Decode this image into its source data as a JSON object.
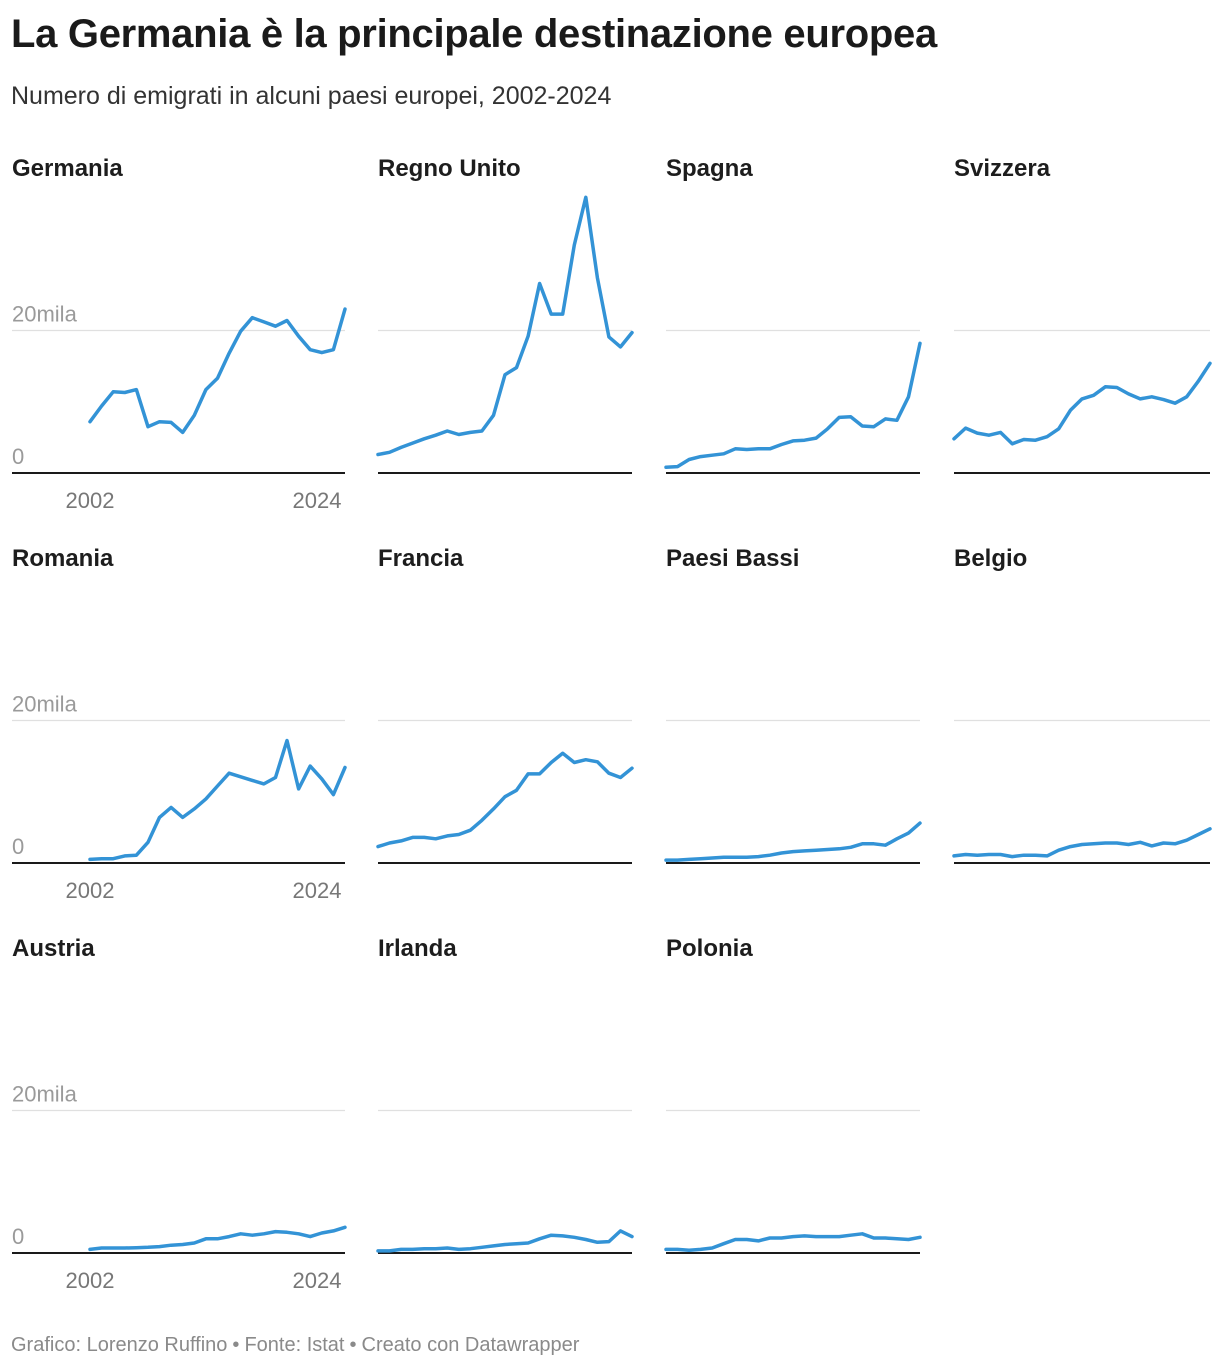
{
  "header": {
    "title": "La Germania è la principale destinazione europea",
    "subtitle": "Numero di emigrati in alcuni paesi europei, 2002-2024"
  },
  "footer": {
    "credit": "Grafico: Lorenzo Ruffino",
    "source": "Fonte: Istat",
    "tool": "Creato con Datawrapper",
    "separator": "•"
  },
  "colors": {
    "line": "#3393d6",
    "grid": "#e0e0e0",
    "baseline": "#1a1a1a",
    "tick_label": "#9a9a9a",
    "year_label": "#777777"
  },
  "chart_data": {
    "type": "line",
    "layout": "small-multiples",
    "title": "La Germania è la principale destinazione europea",
    "subtitle": "Numero di emigrati in alcuni paesi europei, 2002-2024",
    "x": [
      2002,
      2003,
      2004,
      2005,
      2006,
      2007,
      2008,
      2009,
      2010,
      2011,
      2012,
      2013,
      2014,
      2015,
      2016,
      2017,
      2018,
      2019,
      2020,
      2021,
      2022,
      2023,
      2024
    ],
    "x_ticks": [
      "2002",
      "2024"
    ],
    "y_ticks": [
      0,
      20000
    ],
    "y_tick_labels": [
      "0",
      "20mila"
    ],
    "ylim": [
      0,
      40000
    ],
    "series": [
      {
        "name": "Germania",
        "values": [
          7200,
          9400,
          11400,
          11300,
          11700,
          6500,
          7200,
          7100,
          5700,
          8100,
          11700,
          13300,
          16800,
          19900,
          21800,
          21200,
          20600,
          21400,
          19200,
          17300,
          16900,
          17300,
          23000
        ]
      },
      {
        "name": "Regno Unito",
        "values": [
          2600,
          2900,
          3600,
          4200,
          4800,
          5300,
          5900,
          5400,
          5700,
          5900,
          8100,
          13800,
          14800,
          19200,
          26600,
          22300,
          22300,
          32000,
          38700,
          27400,
          19100,
          17700,
          19700
        ]
      },
      {
        "name": "Spagna",
        "values": [
          800,
          900,
          1900,
          2300,
          2500,
          2700,
          3400,
          3300,
          3400,
          3400,
          4000,
          4500,
          4600,
          4900,
          6200,
          7800,
          7900,
          6600,
          6500,
          7600,
          7400,
          10700,
          18200
        ]
      },
      {
        "name": "Svizzera",
        "values": [
          4800,
          6300,
          5600,
          5300,
          5700,
          4100,
          4700,
          4600,
          5100,
          6200,
          8800,
          10400,
          10900,
          12100,
          12000,
          11100,
          10400,
          10700,
          10300,
          9800,
          10700,
          12900,
          15400
        ]
      },
      {
        "name": "Romania",
        "values": [
          500,
          600,
          600,
          1000,
          1100,
          2900,
          6400,
          7800,
          6400,
          7600,
          9000,
          10800,
          12600,
          12100,
          11600,
          11100,
          12000,
          17200,
          10400,
          13600,
          11800,
          9600,
          13400
        ]
      },
      {
        "name": "Francia",
        "values": [
          2300,
          2800,
          3100,
          3600,
          3600,
          3400,
          3800,
          4000,
          4600,
          6000,
          7600,
          9300,
          10200,
          12500,
          12500,
          14100,
          15400,
          14100,
          14500,
          14200,
          12600,
          12000,
          13300
        ]
      },
      {
        "name": "Paesi Bassi",
        "values": [
          400,
          400,
          500,
          600,
          700,
          800,
          800,
          800,
          900,
          1100,
          1400,
          1600,
          1700,
          1800,
          1900,
          2000,
          2200,
          2700,
          2700,
          2500,
          3400,
          4200,
          5600
        ]
      },
      {
        "name": "Belgio",
        "values": [
          1000,
          1200,
          1100,
          1200,
          1200,
          900,
          1100,
          1100,
          1000,
          1800,
          2300,
          2600,
          2700,
          2800,
          2800,
          2600,
          2900,
          2400,
          2800,
          2700,
          3200,
          4000,
          4800
        ]
      },
      {
        "name": "Austria",
        "values": [
          500,
          700,
          700,
          700,
          750,
          800,
          900,
          1100,
          1200,
          1400,
          2000,
          2000,
          2300,
          2700,
          2500,
          2700,
          3000,
          2900,
          2700,
          2300,
          2800,
          3100,
          3600
        ]
      },
      {
        "name": "Irlanda",
        "values": [
          300,
          300,
          500,
          500,
          600,
          600,
          700,
          500,
          600,
          800,
          1000,
          1200,
          1300,
          1400,
          2000,
          2500,
          2400,
          2200,
          1900,
          1500,
          1600,
          3100,
          2300
        ]
      },
      {
        "name": "Polonia",
        "values": [
          500,
          500,
          400,
          500,
          700,
          1300,
          1900,
          1900,
          1700,
          2100,
          2100,
          2300,
          2400,
          2300,
          2300,
          2300,
          2500,
          2700,
          2100,
          2100,
          2000,
          1900,
          2200
        ]
      }
    ]
  }
}
